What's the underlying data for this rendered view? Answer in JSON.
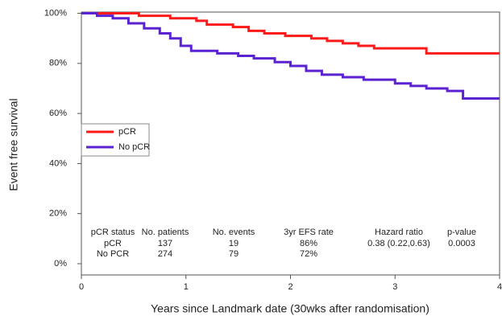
{
  "chart_data": {
    "type": "line",
    "y_label": "Event free survival",
    "x_label": "Years since Landmark date (30wks after randomisation)",
    "xlim": [
      0,
      4
    ],
    "xticks": [
      0,
      1,
      2,
      3,
      4
    ],
    "ylim": [
      -4.5,
      100.5
    ],
    "yticks": [
      {
        "value": 0,
        "label": "0%"
      },
      {
        "value": 20,
        "label": "20%"
      },
      {
        "value": 40,
        "label": "40%"
      },
      {
        "value": 60,
        "label": "60%"
      },
      {
        "value": 80,
        "label": "80%"
      },
      {
        "value": 100,
        "label": "100%"
      }
    ],
    "legend": "top-left",
    "series": [
      {
        "name": "pCR",
        "color": "#ff1a1a",
        "x": [
          0,
          0.55,
          0.55,
          0.85,
          0.85,
          1.1,
          1.1,
          1.2,
          1.2,
          1.45,
          1.45,
          1.6,
          1.6,
          1.75,
          1.75,
          1.95,
          1.95,
          2.2,
          2.2,
          2.35,
          2.35,
          2.5,
          2.5,
          2.65,
          2.65,
          2.8,
          2.8,
          3.3,
          3.3,
          4
        ],
        "values": [
          100,
          100,
          99,
          99,
          98,
          98,
          97,
          97,
          95.5,
          95.5,
          94.5,
          94.5,
          93,
          93,
          92,
          92,
          91,
          91,
          90,
          90,
          89,
          89,
          88,
          88,
          87,
          87,
          86,
          86,
          84,
          84
        ]
      },
      {
        "name": "No pCR",
        "color": "#5a22d0",
        "x": [
          0,
          0.15,
          0.15,
          0.3,
          0.3,
          0.45,
          0.45,
          0.6,
          0.6,
          0.75,
          0.75,
          0.85,
          0.85,
          0.95,
          0.95,
          1.05,
          1.05,
          1.3,
          1.3,
          1.5,
          1.5,
          1.65,
          1.65,
          1.85,
          1.85,
          2.0,
          2.0,
          2.15,
          2.15,
          2.3,
          2.3,
          2.5,
          2.5,
          2.7,
          2.7,
          3.0,
          3.0,
          3.15,
          3.15,
          3.3,
          3.3,
          3.5,
          3.5,
          3.65,
          3.65,
          4
        ],
        "values": [
          100,
          100,
          99,
          99,
          98,
          98,
          96,
          96,
          94,
          94,
          92,
          92,
          90,
          90,
          87,
          87,
          85,
          85,
          84,
          84,
          83,
          83,
          82,
          82,
          80.5,
          80.5,
          79,
          79,
          77,
          77,
          75.5,
          75.5,
          74.5,
          74.5,
          73.5,
          73.5,
          72,
          72,
          71,
          71,
          70,
          70,
          69,
          69,
          66,
          66
        ]
      }
    ],
    "table": {
      "columns": [
        "pCR status",
        "No. patients",
        "No. events",
        "3yr EFS rate",
        "Hazard ratio",
        "p-value"
      ],
      "rows": [
        [
          "pCR",
          "137",
          "19",
          "86%",
          "0.38 (0.22,0.63)",
          "0.0003"
        ],
        [
          "No PCR",
          "274",
          "79",
          "72%"
        ]
      ]
    }
  }
}
